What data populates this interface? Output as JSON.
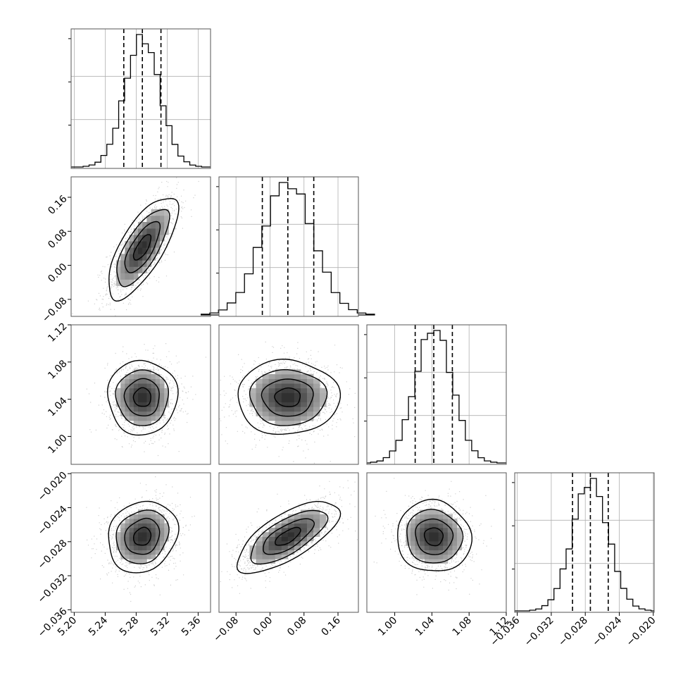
{
  "chart_data": {
    "type": "corner",
    "title": "",
    "grid": true,
    "variables": [
      {
        "range": [
          5.196,
          5.376
        ],
        "ticks": [
          "5.20",
          "5.24",
          "5.28",
          "5.32",
          "5.36"
        ],
        "quantiles": [
          5.264,
          5.288,
          5.312
        ],
        "mean": 5.288,
        "sd": 0.0225
      },
      {
        "range": [
          -0.12,
          0.208
        ],
        "ticks": [
          "−0.08",
          "0.00",
          "0.08",
          "0.16"
        ],
        "quantiles": [
          -0.018,
          0.042,
          0.103
        ],
        "mean": 0.042,
        "sd": 0.06
      },
      {
        "range": [
          0.97,
          1.12
        ],
        "ticks": [
          "1.00",
          "1.04",
          "1.08",
          "1.12"
        ],
        "quantiles": [
          1.022,
          1.042,
          1.062
        ],
        "mean": 1.042,
        "sd": 0.02
      },
      {
        "range": [
          -0.0363,
          -0.0199
        ],
        "ticks": [
          "−0.036",
          "−0.032",
          "−0.028",
          "−0.024",
          "−0.020"
        ],
        "quantiles": [
          -0.0295,
          -0.0274,
          -0.0253
        ],
        "mean": -0.0274,
        "sd": 0.0021
      }
    ],
    "correlations": [
      {
        "pair": [
          0,
          1
        ],
        "rho": 0.72
      },
      {
        "pair": [
          0,
          2
        ],
        "rho": 0.0
      },
      {
        "pair": [
          1,
          2
        ],
        "rho": 0.0
      },
      {
        "pair": [
          0,
          3
        ],
        "rho": 0.15
      },
      {
        "pair": [
          1,
          3
        ],
        "rho": 0.7
      },
      {
        "pair": [
          2,
          3
        ],
        "rho": -0.05
      }
    ],
    "histogram_bins": 20,
    "contour_levels_sigma": [
      0.5,
      1.0,
      1.5,
      2.0
    ]
  }
}
